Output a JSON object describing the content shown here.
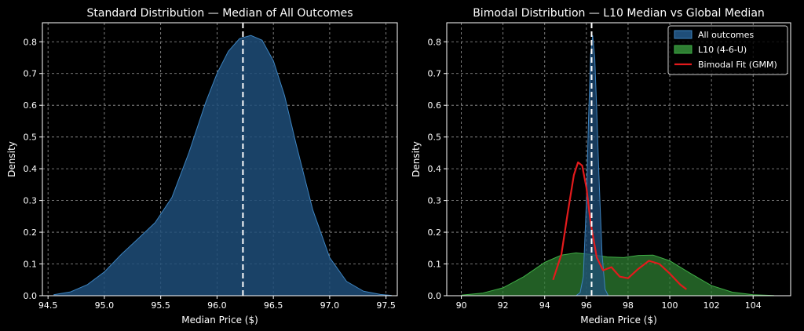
{
  "colors": {
    "background": "#000000",
    "axes_face": "#000000",
    "spine": "#ffffff",
    "grid": "#9a9a9a",
    "text": "#ffffff",
    "all_outcomes_fill": "#1f4e79",
    "all_outcomes_edge": "#3d83bf",
    "l10_fill": "#2e7d32",
    "l10_edge": "#3fae46",
    "gmm_line": "#e31a1c",
    "median_line": "#ffffff"
  },
  "chart_data": [
    {
      "type": "area",
      "title": "Standard Distribution — Median of All Outcomes",
      "xlabel": "Median Price ($)",
      "ylabel": "Density",
      "xlim": [
        94.45,
        97.6
      ],
      "ylim": [
        0,
        0.86
      ],
      "xticks": [
        94.5,
        95.0,
        95.5,
        96.0,
        96.5,
        97.0,
        97.5
      ],
      "xtick_labels": [
        "94.5",
        "95.0",
        "95.5",
        "96.0",
        "96.5",
        "97.0",
        "97.5"
      ],
      "yticks": [
        0.0,
        0.1,
        0.2,
        0.3,
        0.4,
        0.5,
        0.6,
        0.7,
        0.8
      ],
      "ytick_labels": [
        "0.0",
        "0.1",
        "0.2",
        "0.3",
        "0.4",
        "0.5",
        "0.6",
        "0.7",
        "0.8"
      ],
      "grid": true,
      "series": [
        {
          "type": "area",
          "x": [
            94.55,
            94.7,
            94.85,
            95.0,
            95.15,
            95.3,
            95.45,
            95.6,
            95.75,
            95.9,
            96.0,
            96.1,
            96.2,
            96.3,
            96.4,
            96.5,
            96.6,
            96.7,
            96.85,
            97.0,
            97.15,
            97.3,
            97.45,
            97.55
          ],
          "y": [
            0.003,
            0.012,
            0.035,
            0.075,
            0.13,
            0.18,
            0.23,
            0.31,
            0.45,
            0.61,
            0.7,
            0.77,
            0.81,
            0.82,
            0.805,
            0.74,
            0.63,
            0.48,
            0.27,
            0.12,
            0.045,
            0.014,
            0.004,
            0.001
          ]
        }
      ],
      "vlines": [
        {
          "x": 96.23,
          "style": "dashed"
        }
      ]
    },
    {
      "type": "area",
      "title": "Bimodal Distribution — L10 Median vs Global Median",
      "xlabel": "Median Price ($)",
      "ylabel": "Density",
      "xlim": [
        89.3,
        105.8
      ],
      "ylim": [
        0,
        0.86
      ],
      "xticks": [
        90,
        92,
        94,
        96,
        98,
        100,
        102,
        104
      ],
      "xtick_labels": [
        "90",
        "92",
        "94",
        "96",
        "98",
        "100",
        "102",
        "104"
      ],
      "yticks": [
        0.0,
        0.1,
        0.2,
        0.3,
        0.4,
        0.5,
        0.6,
        0.7,
        0.8
      ],
      "ytick_labels": [
        "0.0",
        "0.1",
        "0.2",
        "0.3",
        "0.4",
        "0.5",
        "0.6",
        "0.7",
        "0.8"
      ],
      "grid": true,
      "legend_position": "top-right",
      "series": [
        {
          "name": "L10 (4-6-U)",
          "type": "area",
          "x": [
            90.0,
            91.0,
            92.0,
            93.0,
            94.0,
            94.8,
            95.5,
            96.2,
            97.0,
            97.8,
            98.5,
            99.2,
            100.0,
            101.0,
            102.0,
            103.0,
            104.0,
            105.0
          ],
          "y": [
            0.002,
            0.008,
            0.025,
            0.06,
            0.105,
            0.128,
            0.135,
            0.13,
            0.122,
            0.12,
            0.127,
            0.128,
            0.11,
            0.07,
            0.032,
            0.011,
            0.003,
            0.0005
          ]
        },
        {
          "name": "All outcomes",
          "type": "area",
          "x": [
            95.5,
            95.7,
            95.85,
            96.0,
            96.1,
            96.2,
            96.3,
            96.4,
            96.5,
            96.6,
            96.75,
            96.9,
            97.05
          ],
          "y": [
            0.0,
            0.01,
            0.06,
            0.3,
            0.55,
            0.76,
            0.82,
            0.75,
            0.58,
            0.38,
            0.13,
            0.02,
            0.0
          ]
        },
        {
          "name": "Bimodal Fit (GMM)",
          "type": "line",
          "x": [
            94.4,
            94.8,
            95.1,
            95.4,
            95.6,
            95.8,
            96.0,
            96.2,
            96.5,
            96.8,
            97.2,
            97.6,
            98.0,
            98.5,
            99.0,
            99.5,
            100.0,
            100.5,
            100.8
          ],
          "y": [
            0.05,
            0.13,
            0.26,
            0.38,
            0.42,
            0.41,
            0.34,
            0.23,
            0.12,
            0.08,
            0.09,
            0.06,
            0.055,
            0.085,
            0.11,
            0.1,
            0.07,
            0.035,
            0.02
          ]
        }
      ],
      "vlines": [
        {
          "x": 96.25,
          "style": "dashed"
        }
      ]
    }
  ]
}
